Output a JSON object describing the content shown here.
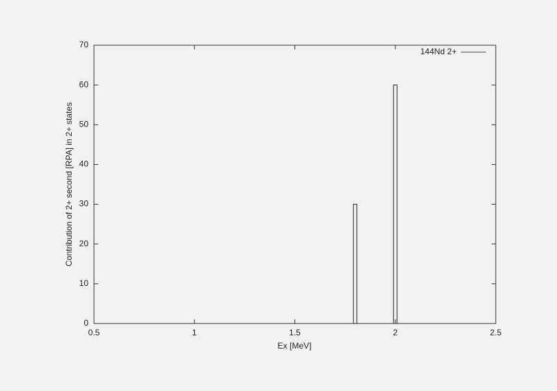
{
  "chart_data": {
    "type": "bar",
    "xlabel": "Ex [MeV]",
    "ylabel": "Contribution of 2+ second [RPA] in 2+ states",
    "x": [
      1.8,
      2.0
    ],
    "series": [
      {
        "name": "144Nd 2+",
        "color": "#444444",
        "values": [
          30,
          60
        ]
      }
    ],
    "xlim": [
      0.5,
      2.5
    ],
    "xticks": [
      0.5,
      1,
      1.5,
      2,
      2.5
    ],
    "ylim": [
      0,
      70
    ],
    "yticks": [
      0,
      10,
      20,
      30,
      40,
      50,
      60,
      70
    ],
    "legend": "top-right",
    "grid": false
  }
}
